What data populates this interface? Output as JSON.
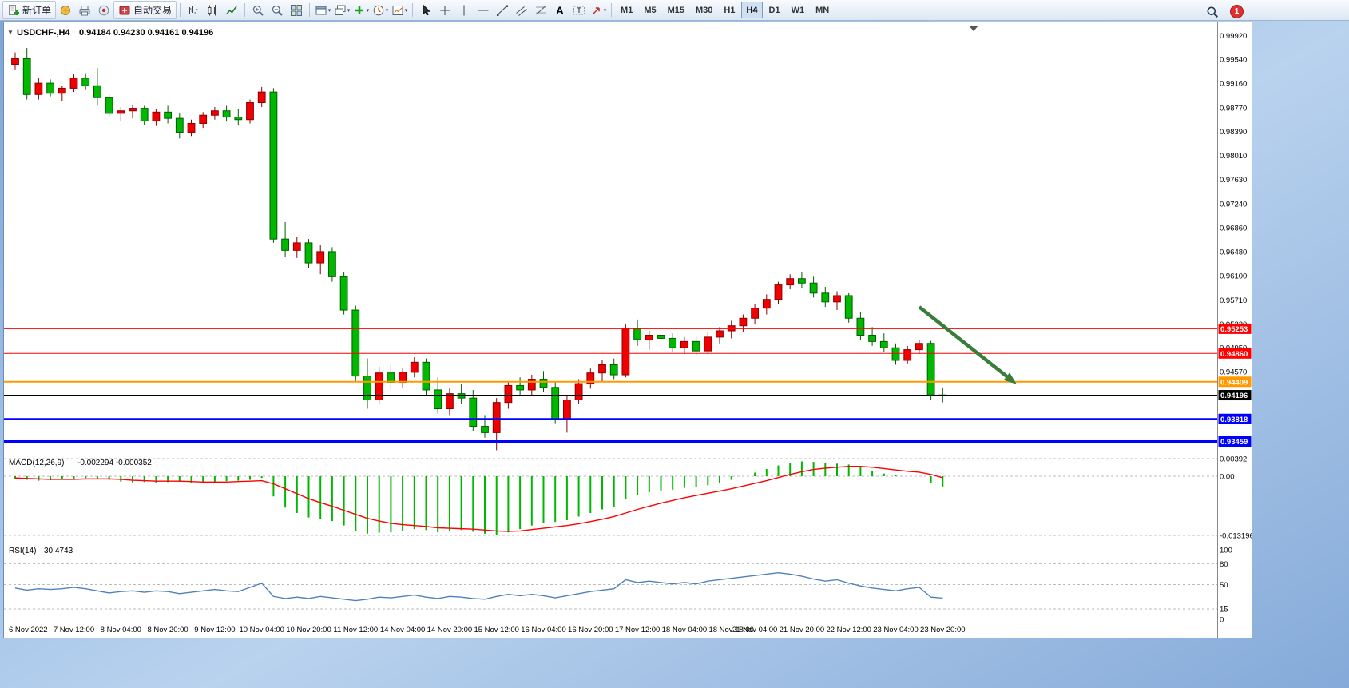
{
  "toolbar": {
    "items": [
      {
        "kind": "neworder",
        "name": "new-order",
        "label": "新订单"
      },
      {
        "kind": "profile",
        "name": "charts-profile"
      },
      {
        "kind": "print",
        "name": "print"
      },
      {
        "kind": "expert",
        "name": "expert-advisors"
      },
      {
        "kind": "autotrade",
        "name": "auto-trading",
        "label": "自动交易"
      },
      {
        "kind": "sep"
      },
      {
        "kind": "bars",
        "name": "bar-chart-mode"
      },
      {
        "kind": "candles",
        "name": "candlestick-mode"
      },
      {
        "kind": "linechart",
        "name": "line-chart-mode"
      },
      {
        "kind": "sep"
      },
      {
        "kind": "zoomin",
        "name": "zoom-in"
      },
      {
        "kind": "zoomout",
        "name": "zoom-out"
      },
      {
        "kind": "tile",
        "name": "tile-windows"
      },
      {
        "kind": "sep"
      },
      {
        "kind": "window",
        "name": "chart-list",
        "dropdown": true
      },
      {
        "kind": "window2",
        "name": "chart-cascade",
        "dropdown": true
      },
      {
        "kind": "plus",
        "name": "new-chart",
        "dropdown": true
      },
      {
        "kind": "clock",
        "name": "chart-period",
        "dropdown": true
      },
      {
        "kind": "template",
        "name": "chart-template",
        "dropdown": true
      },
      {
        "kind": "sep"
      },
      {
        "kind": "cursor",
        "name": "cursor-tool"
      },
      {
        "kind": "crosshair",
        "name": "crosshair-tool"
      },
      {
        "kind": "vline",
        "name": "vertical-line-tool"
      },
      {
        "kind": "hline",
        "name": "horizontal-line-tool"
      },
      {
        "kind": "trend",
        "name": "trendline-tool"
      },
      {
        "kind": "channel",
        "name": "channel-tool"
      },
      {
        "kind": "fibo",
        "name": "fibonacci-tool"
      },
      {
        "kind": "textA",
        "name": "text-tool"
      },
      {
        "kind": "labelT",
        "name": "text-label-tool"
      },
      {
        "kind": "arrowsym",
        "name": "arrows-tool",
        "dropdown": true
      },
      {
        "kind": "sep"
      }
    ],
    "timeframes": [
      {
        "label": "M1",
        "active": false
      },
      {
        "label": "M5",
        "active": false
      },
      {
        "label": "M15",
        "active": false
      },
      {
        "label": "M30",
        "active": false
      },
      {
        "label": "H1",
        "active": false
      },
      {
        "label": "H4",
        "active": true
      },
      {
        "label": "D1",
        "active": false
      },
      {
        "label": "W1",
        "active": false
      },
      {
        "label": "MN",
        "active": false
      }
    ],
    "notification_count": "1"
  },
  "chart": {
    "title": "USDCHF-,H4",
    "ohlc": "0.94184 0.94230 0.94161 0.94196"
  },
  "chart_data": {
    "type": "candlestick",
    "symbol": "USDCHF",
    "timeframe": "H4",
    "y_domain": [
      0.933,
      0.9995
    ],
    "colors": {
      "bull": "#f00000",
      "bull_dark": "#8c0000",
      "bear": "#00b800",
      "bear_dark": "#005f00"
    },
    "price_ticks": [
      "0.99920",
      "0.99540",
      "0.99160",
      "0.98770",
      "0.98390",
      "0.98010",
      "0.97630",
      "0.97240",
      "0.96860",
      "0.96480",
      "0.96100",
      "0.95710",
      "0.95330",
      "0.94950",
      "0.94570"
    ],
    "hlines": [
      {
        "price": 0.95253,
        "label": "0.95253",
        "color": "#ff0000",
        "width": 1
      },
      {
        "price": 0.9486,
        "label": "0.94860",
        "color": "#ff0000",
        "width": 1
      },
      {
        "price": 0.94409,
        "label": "0.94409",
        "color": "#ff9900",
        "width": 2
      },
      {
        "price": 0.94196,
        "label": "0.94196",
        "color": "#000000",
        "width": 1
      },
      {
        "price": 0.93818,
        "label": "0.93818",
        "color": "#0000ff",
        "width": 2
      },
      {
        "price": 0.93459,
        "label": "0.93459",
        "color": "#0000ff",
        "width": 3
      }
    ],
    "time_labels": [
      [
        "6 Nov 2022",
        0
      ],
      [
        "7 Nov 12:00",
        5
      ],
      [
        "8 Nov 04:00",
        9
      ],
      [
        "8 Nov 20:00",
        13
      ],
      [
        "9 Nov 12:00",
        17
      ],
      [
        "10 Nov 04:00",
        21
      ],
      [
        "10 Nov 20:00",
        25
      ],
      [
        "11 Nov 12:00",
        29
      ],
      [
        "14 Nov 04:00",
        33
      ],
      [
        "14 Nov 20:00",
        37
      ],
      [
        "15 Nov 12:00",
        41
      ],
      [
        "16 Nov 04:00",
        45
      ],
      [
        "16 Nov 20:00",
        49
      ],
      [
        "17 Nov 12:00",
        53
      ],
      [
        "18 Nov 04:00",
        57
      ],
      [
        "18 Nov 18:00",
        61
      ],
      [
        "21 Nov 04:00",
        63
      ],
      [
        "21 Nov 20:00",
        67
      ],
      [
        "22 Nov 12:00",
        71
      ],
      [
        "23 Nov 04:00",
        75
      ],
      [
        "23 Nov 20:00",
        79
      ]
    ],
    "annotation_arrow": {
      "from_idx": 77.0,
      "from_price": 0.956,
      "to_idx": 85.3,
      "to_price": 0.9437,
      "color": "#3a7d3a"
    },
    "candles": [
      [
        0.9946,
        0.9965,
        0.9938,
        0.9955
      ],
      [
        0.9955,
        0.9972,
        0.989,
        0.9898
      ],
      [
        0.9898,
        0.9925,
        0.989,
        0.9916
      ],
      [
        0.9916,
        0.9922,
        0.9895,
        0.99
      ],
      [
        0.99,
        0.9912,
        0.9888,
        0.9908
      ],
      [
        0.9908,
        0.993,
        0.9902,
        0.9924
      ],
      [
        0.9924,
        0.9932,
        0.9905,
        0.9912
      ],
      [
        0.9912,
        0.994,
        0.988,
        0.9893
      ],
      [
        0.9893,
        0.9898,
        0.9862,
        0.9868
      ],
      [
        0.9868,
        0.9878,
        0.9855,
        0.9872
      ],
      [
        0.9872,
        0.9882,
        0.986,
        0.9876
      ],
      [
        0.9876,
        0.988,
        0.985,
        0.9856
      ],
      [
        0.9856,
        0.9875,
        0.9848,
        0.987
      ],
      [
        0.987,
        0.988,
        0.9852,
        0.986
      ],
      [
        0.986,
        0.9868,
        0.9828,
        0.9838
      ],
      [
        0.9838,
        0.9858,
        0.9832,
        0.9852
      ],
      [
        0.9852,
        0.987,
        0.9845,
        0.9865
      ],
      [
        0.9865,
        0.9878,
        0.9858,
        0.9872
      ],
      [
        0.9872,
        0.988,
        0.9855,
        0.9862
      ],
      [
        0.9862,
        0.9875,
        0.985,
        0.9858
      ],
      [
        0.9858,
        0.989,
        0.9852,
        0.9885
      ],
      [
        0.9885,
        0.991,
        0.9878,
        0.9902
      ],
      [
        0.9902,
        0.9908,
        0.9662,
        0.9668
      ],
      [
        0.9668,
        0.9695,
        0.964,
        0.965
      ],
      [
        0.965,
        0.9672,
        0.9638,
        0.9662
      ],
      [
        0.9662,
        0.9668,
        0.9622,
        0.963
      ],
      [
        0.963,
        0.9658,
        0.9612,
        0.9648
      ],
      [
        0.9648,
        0.9655,
        0.96,
        0.9608
      ],
      [
        0.9608,
        0.9615,
        0.9548,
        0.9555
      ],
      [
        0.9555,
        0.9562,
        0.9442,
        0.945
      ],
      [
        0.945,
        0.9478,
        0.9398,
        0.9412
      ],
      [
        0.9412,
        0.9465,
        0.9405,
        0.9455
      ],
      [
        0.9455,
        0.947,
        0.9428,
        0.944
      ],
      [
        0.944,
        0.9462,
        0.9432,
        0.9456
      ],
      [
        0.9456,
        0.948,
        0.9448,
        0.9472
      ],
      [
        0.9472,
        0.9478,
        0.942,
        0.9428
      ],
      [
        0.9428,
        0.9448,
        0.939,
        0.9398
      ],
      [
        0.9398,
        0.943,
        0.9388,
        0.9422
      ],
      [
        0.9422,
        0.9438,
        0.9405,
        0.9415
      ],
      [
        0.9415,
        0.9428,
        0.9362,
        0.937
      ],
      [
        0.937,
        0.9388,
        0.9352,
        0.936
      ],
      [
        0.936,
        0.9415,
        0.9332,
        0.9408
      ],
      [
        0.9408,
        0.9442,
        0.9398,
        0.9435
      ],
      [
        0.9435,
        0.9448,
        0.9418,
        0.9428
      ],
      [
        0.9428,
        0.9452,
        0.942,
        0.9445
      ],
      [
        0.9445,
        0.9458,
        0.9425,
        0.9432
      ],
      [
        0.9432,
        0.944,
        0.9375,
        0.9382
      ],
      [
        0.9382,
        0.942,
        0.936,
        0.9412
      ],
      [
        0.9412,
        0.9445,
        0.9405,
        0.9438
      ],
      [
        0.9438,
        0.9462,
        0.943,
        0.9455
      ],
      [
        0.9455,
        0.9475,
        0.944,
        0.9468
      ],
      [
        0.9468,
        0.9478,
        0.9445,
        0.9452
      ],
      [
        0.9452,
        0.9532,
        0.9448,
        0.9525
      ],
      [
        0.9525,
        0.954,
        0.9498,
        0.9508
      ],
      [
        0.9508,
        0.9522,
        0.9492,
        0.9515
      ],
      [
        0.9515,
        0.9525,
        0.95,
        0.951
      ],
      [
        0.951,
        0.9518,
        0.9488,
        0.9495
      ],
      [
        0.9495,
        0.9512,
        0.9485,
        0.9505
      ],
      [
        0.9505,
        0.9515,
        0.9482,
        0.949
      ],
      [
        0.949,
        0.952,
        0.9485,
        0.9512
      ],
      [
        0.9512,
        0.9528,
        0.9502,
        0.9522
      ],
      [
        0.9522,
        0.9538,
        0.951,
        0.953
      ],
      [
        0.953,
        0.9548,
        0.952,
        0.9542
      ],
      [
        0.9542,
        0.9565,
        0.9532,
        0.9558
      ],
      [
        0.9558,
        0.958,
        0.9548,
        0.9572
      ],
      [
        0.9572,
        0.96,
        0.9565,
        0.9595
      ],
      [
        0.9595,
        0.9612,
        0.9588,
        0.9605
      ],
      [
        0.9605,
        0.9615,
        0.959,
        0.9598
      ],
      [
        0.9598,
        0.9608,
        0.9575,
        0.9582
      ],
      [
        0.9582,
        0.9592,
        0.956,
        0.9568
      ],
      [
        0.9568,
        0.9585,
        0.9555,
        0.9578
      ],
      [
        0.9578,
        0.9582,
        0.9535,
        0.9542
      ],
      [
        0.9542,
        0.9552,
        0.9508,
        0.9515
      ],
      [
        0.9515,
        0.9528,
        0.9498,
        0.9505
      ],
      [
        0.9505,
        0.9518,
        0.9488,
        0.9495
      ],
      [
        0.9495,
        0.9502,
        0.9468,
        0.9475
      ],
      [
        0.9475,
        0.9498,
        0.947,
        0.9492
      ],
      [
        0.9492,
        0.9508,
        0.9485,
        0.9502
      ],
      [
        0.9502,
        0.9506,
        0.9412,
        0.942
      ],
      [
        0.942,
        0.9432,
        0.9408,
        0.94196
      ]
    ],
    "indicators": {
      "macd": {
        "label": "MACD(12,26,9)",
        "values_text": "-0.002294 -0.000352",
        "scale": [
          "0.00392",
          "0.00",
          "-0.013196"
        ],
        "scale_values": [
          0.00392,
          0,
          -0.013196
        ],
        "color": "#00b800",
        "signal_color": "#ff0000",
        "hist": [
          -0.0005,
          -0.0008,
          -0.001,
          -0.0009,
          -0.0008,
          -0.0006,
          -0.0004,
          -0.0005,
          -0.0008,
          -0.0012,
          -0.0014,
          -0.0013,
          -0.0014,
          -0.0013,
          -0.0012,
          -0.0015,
          -0.0016,
          -0.0014,
          -0.0011,
          -0.001,
          -0.0008,
          -0.0004,
          -0.0045,
          -0.007,
          -0.0082,
          -0.0092,
          -0.0095,
          -0.01,
          -0.011,
          -0.0122,
          -0.0128,
          -0.0126,
          -0.0125,
          -0.0122,
          -0.0118,
          -0.012,
          -0.0125,
          -0.0122,
          -0.012,
          -0.0124,
          -0.0128,
          -0.0131,
          -0.0125,
          -0.0118,
          -0.011,
          -0.0104,
          -0.0102,
          -0.0098,
          -0.009,
          -0.0082,
          -0.0074,
          -0.0068,
          -0.0052,
          -0.0042,
          -0.0036,
          -0.0032,
          -0.003,
          -0.0026,
          -0.0024,
          -0.002,
          -0.0015,
          -0.0008,
          0.0,
          0.0008,
          0.0016,
          0.0024,
          0.003,
          0.0033,
          0.0032,
          0.003,
          0.0028,
          0.0026,
          0.002,
          0.0012,
          0.0006,
          0.0002,
          0.0,
          0.0,
          -0.0015,
          -0.002294
        ],
        "signal": [
          -0.0004,
          -0.0005,
          -0.0006,
          -0.0007,
          -0.0007,
          -0.0007,
          -0.0006,
          -0.0006,
          -0.0006,
          -0.0007,
          -0.0009,
          -0.001,
          -0.0011,
          -0.0011,
          -0.0011,
          -0.0012,
          -0.0013,
          -0.0013,
          -0.0013,
          -0.0012,
          -0.0011,
          -0.001,
          -0.0017,
          -0.0028,
          -0.0039,
          -0.005,
          -0.0059,
          -0.0067,
          -0.0076,
          -0.0085,
          -0.0094,
          -0.01,
          -0.0105,
          -0.0108,
          -0.011,
          -0.0112,
          -0.0115,
          -0.0116,
          -0.0117,
          -0.0118,
          -0.012,
          -0.0122,
          -0.0123,
          -0.0122,
          -0.0119,
          -0.0116,
          -0.0113,
          -0.011,
          -0.0106,
          -0.0101,
          -0.0096,
          -0.009,
          -0.0082,
          -0.0074,
          -0.0067,
          -0.006,
          -0.0054,
          -0.0048,
          -0.0043,
          -0.0038,
          -0.0033,
          -0.0028,
          -0.0022,
          -0.0016,
          -0.001,
          -0.0003,
          0.0004,
          0.001,
          0.0015,
          0.0018,
          0.002,
          0.0022,
          0.0022,
          0.002,
          0.0017,
          0.0014,
          0.0011,
          0.0009,
          0.0004,
          -0.000352
        ]
      },
      "rsi": {
        "label": "RSI(14)",
        "value_text": "30.4743",
        "scale": [
          "100",
          "80",
          "50",
          "15",
          "0"
        ],
        "scale_values": [
          100,
          80,
          50,
          15,
          0
        ],
        "levels": [
          80,
          50,
          15
        ],
        "color": "#4f81bd",
        "values": [
          45,
          42,
          44,
          43,
          44,
          46,
          44,
          41,
          38,
          40,
          41,
          39,
          41,
          40,
          37,
          39,
          41,
          43,
          41,
          40,
          46,
          52,
          33,
          30,
          32,
          30,
          33,
          31,
          29,
          27,
          29,
          32,
          31,
          33,
          35,
          32,
          30,
          33,
          32,
          30,
          29,
          33,
          36,
          34,
          36,
          34,
          31,
          34,
          37,
          40,
          42,
          44,
          57,
          53,
          55,
          53,
          51,
          53,
          51,
          55,
          57,
          59,
          61,
          63,
          65,
          67,
          65,
          62,
          58,
          55,
          57,
          52,
          48,
          45,
          43,
          41,
          44,
          46,
          32,
          30.4743
        ]
      }
    }
  }
}
